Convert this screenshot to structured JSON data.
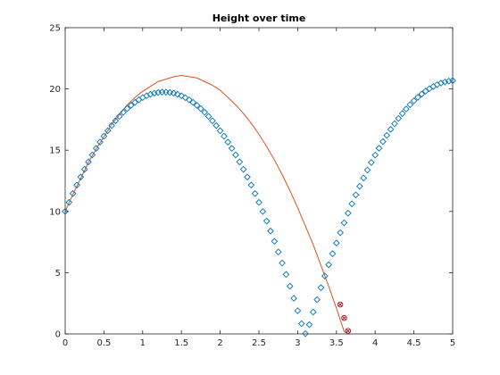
{
  "chart_data": {
    "type": "scatter",
    "title": "Height over time",
    "xlabel": "",
    "ylabel": "",
    "xlim": [
      0,
      5
    ],
    "ylim": [
      0,
      25
    ],
    "xticks": [
      0,
      0.5,
      1,
      1.5,
      2,
      2.5,
      3,
      3.5,
      4,
      4.5,
      5
    ],
    "yticks": [
      0,
      5,
      10,
      15,
      20,
      25
    ],
    "xtick_labels": [
      "0",
      "0.5",
      "1",
      "1.5",
      "2",
      "2.5",
      "3",
      "3.5",
      "4",
      "4.5",
      "5"
    ],
    "ytick_labels": [
      "0",
      "5",
      "10",
      "15",
      "20",
      "25"
    ],
    "grid": false,
    "colors": {
      "markers": "#0072BD",
      "line": "#D95319",
      "highlight": "#A2142F"
    },
    "series": [
      {
        "kind": "markers",
        "marker": "diamond",
        "color": "#0072BD",
        "x": [
          0,
          0.05,
          0.1,
          0.15,
          0.2,
          0.25,
          0.3,
          0.35,
          0.4,
          0.45,
          0.5,
          0.55,
          0.6,
          0.65,
          0.7,
          0.75,
          0.8,
          0.85,
          0.9,
          0.95,
          1,
          1.05,
          1.1,
          1.15,
          1.2,
          1.25,
          1.3,
          1.35,
          1.4,
          1.45,
          1.5,
          1.55,
          1.6,
          1.65,
          1.7,
          1.75,
          1.8,
          1.85,
          1.9,
          1.95,
          2,
          2.05,
          2.1,
          2.15,
          2.2,
          2.25,
          2.3,
          2.35,
          2.4,
          2.45,
          2.5,
          2.55,
          2.6,
          2.65,
          2.7,
          2.75,
          2.8,
          2.85,
          2.9,
          2.95,
          3,
          3.05,
          3.1,
          3.15,
          3.2,
          3.25,
          3.3,
          3.35,
          3.4,
          3.45,
          3.5,
          3.55,
          3.6,
          3.65,
          3.7,
          3.75,
          3.8,
          3.85,
          3.9,
          3.95,
          4,
          4.05,
          4.1,
          4.15,
          4.2,
          4.25,
          4.3,
          4.35,
          4.4,
          4.45,
          4.5,
          4.55,
          4.6,
          4.65,
          4.7,
          4.75,
          4.8,
          4.85,
          4.9,
          4.95,
          5
        ],
        "y": [
          10,
          10.74,
          11.46,
          12.15,
          12.81,
          13.44,
          14.04,
          14.61,
          15.15,
          15.66,
          16.14,
          16.59,
          17.01,
          17.4,
          17.76,
          18.09,
          18.39,
          18.66,
          18.9,
          19.11,
          19.29,
          19.44,
          19.56,
          19.65,
          19.71,
          19.74,
          19.74,
          19.71,
          19.65,
          19.56,
          19.44,
          19.29,
          19.11,
          18.9,
          18.66,
          18.39,
          18.09,
          17.76,
          17.4,
          17.01,
          16.59,
          16.14,
          15.66,
          15.15,
          14.61,
          14.04,
          13.44,
          12.81,
          12.15,
          11.46,
          10.74,
          9.99,
          9.21,
          8.4,
          7.56,
          6.69,
          5.79,
          4.86,
          3.9,
          2.91,
          1.89,
          0.84,
          0.02,
          0.76,
          1.79,
          2.8,
          3.78,
          4.73,
          5.65,
          6.55,
          7.42,
          8.26,
          9.07,
          9.86,
          10.62,
          11.35,
          12.05,
          12.73,
          13.38,
          14.0,
          14.6,
          15.16,
          15.7,
          16.21,
          16.7,
          17.16,
          17.59,
          17.99,
          18.36,
          18.71,
          19.03,
          19.32,
          19.58,
          19.82,
          20.02,
          20.2,
          20.35,
          20.48,
          20.57,
          20.64,
          20.68
        ]
      },
      {
        "kind": "line",
        "color": "#D95319",
        "x": [
          0,
          0.1,
          0.2,
          0.3,
          0.4,
          0.5,
          0.6,
          0.7,
          0.8,
          0.9,
          1,
          1.1,
          1.2,
          1.3,
          1.4,
          1.5,
          1.6,
          1.7,
          1.8,
          1.9,
          2,
          2.1,
          2.2,
          2.3,
          2.4,
          2.5,
          2.6,
          2.7,
          2.8,
          2.9,
          3,
          3.1,
          3.2,
          3.3,
          3.4,
          3.5,
          3.6,
          3.65
        ],
        "y": [
          10,
          11.4,
          12.7,
          14.0,
          15.1,
          16.1,
          17.1,
          17.9,
          18.7,
          19.3,
          19.8,
          20.2,
          20.6,
          20.8,
          21.0,
          21.1,
          21.0,
          20.9,
          20.6,
          20.3,
          19.9,
          19.3,
          18.7,
          18.0,
          17.2,
          16.3,
          15.3,
          14.2,
          13.0,
          11.7,
          10.3,
          8.8,
          7.3,
          5.6,
          3.9,
          2.1,
          0.2,
          0
        ]
      },
      {
        "kind": "markers",
        "marker": "circle-x",
        "color": "#A2142F",
        "x": [
          3.55,
          3.6,
          3.65
        ],
        "y": [
          2.4,
          1.3,
          0.25
        ]
      }
    ]
  }
}
